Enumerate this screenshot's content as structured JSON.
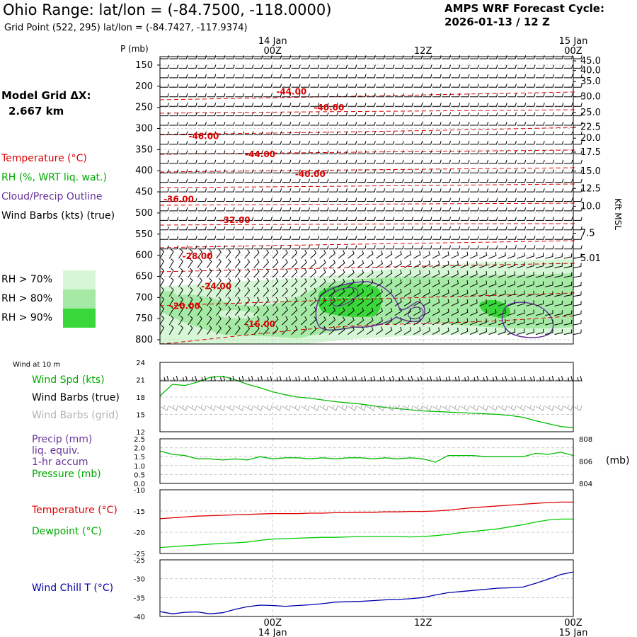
{
  "header": {
    "title": "Ohio Range:  lat/lon = (-84.7500, -118.0000)",
    "grid_point": "Grid Point (522, 295) lat/lon = (-84.7427, -117.9374)",
    "cycle_line1": "AMPS WRF Forecast Cycle:",
    "cycle_line2": "2026-01-13 / 12  Z"
  },
  "grid": {
    "dx_label": "Model Grid ΔX:",
    "dx_value": "2.667 km"
  },
  "legend": {
    "temperature": "Temperature (°C)",
    "rh": "RH (%, WRT liq. wat.)",
    "cloud": "Cloud/Precip Outline",
    "wind_barbs": "Wind Barbs (kts) (true)",
    "rh70": "RH > 70%",
    "rh80": "RH > 80%",
    "rh90": "RH > 90%",
    "rh70_color": "#d6f7d6",
    "rh80_color": "#a4eaa4",
    "rh90_color": "#39d739"
  },
  "axes": {
    "pressure_label": "P (mb)",
    "kft_label": "Kft MSL"
  },
  "surface_legend": {
    "wind_10m": "Wind at 10 m",
    "wind_speed": "Wind Spd (kts)",
    "barbs_true": "Wind Barbs (true)",
    "barbs_grid": "Wind Barbs (grid)",
    "precip": "Precip (mm)",
    "liq": "liq. equiv.",
    "accum": "1-hr accum",
    "pressure": "Pressure (mb)",
    "pressure_unit": "(mb)",
    "temperature": "Temperature (°C)",
    "dewpoint": "Dewpoint (°C)",
    "wind_chill": "Wind Chill T (°C)"
  },
  "chart_data": [
    {
      "type": "heatmap",
      "title": "Time-height cross section",
      "time_ticks_top": [
        {
          "hour": 0,
          "label": "00Z",
          "date": "14 Jan"
        },
        {
          "hour": 12,
          "label": "12Z",
          "date": ""
        },
        {
          "hour": 24,
          "label": "00Z",
          "date": "15 Jan"
        }
      ],
      "time_range_hours": [
        -9,
        24
      ],
      "pressure_ticks_mb": [
        150,
        200,
        250,
        300,
        350,
        400,
        450,
        500,
        550,
        600,
        650,
        700,
        750,
        800
      ],
      "height_ticks_kft": [
        {
          "label": "45.0",
          "p": 140
        },
        {
          "label": "40.0",
          "p": 163
        },
        {
          "label": "35.0",
          "p": 189
        },
        {
          "label": "30.0",
          "p": 225
        },
        {
          "label": "25.0",
          "p": 262
        },
        {
          "label": "22.5",
          "p": 297
        },
        {
          "label": "20.0",
          "p": 323
        },
        {
          "label": "17.5",
          "p": 356
        },
        {
          "label": "15.0",
          "p": 401
        },
        {
          "label": "12.5",
          "p": 442
        },
        {
          "label": "10.0",
          "p": 484
        },
        {
          "label": "7.5",
          "p": 548
        },
        {
          "label": "5.01",
          "p": 607
        }
      ],
      "pressure_range_mb": [
        130,
        810
      ],
      "temperature_labels": [
        {
          "t": -44,
          "text": "-44.00",
          "hour": 1.5,
          "p": 220
        },
        {
          "t": -40,
          "text": "-40.00",
          "hour": 4.5,
          "p": 257
        },
        {
          "t": -46,
          "text": "-46.00",
          "hour": -5.5,
          "p": 325
        },
        {
          "t": -44,
          "text": "-44.00",
          "hour": -1.0,
          "p": 368
        },
        {
          "t": -40,
          "text": "-40.00",
          "hour": 3.0,
          "p": 415
        },
        {
          "t": -36,
          "text": "-36.00",
          "hour": -7.5,
          "p": 474
        },
        {
          "t": -32,
          "text": "-32.00",
          "hour": -3.0,
          "p": 524
        },
        {
          "t": -28,
          "text": "-28.00",
          "hour": -6.0,
          "p": 609
        },
        {
          "t": -24,
          "text": "-24.00",
          "hour": -4.5,
          "p": 680
        },
        {
          "t": -20,
          "text": "-20.00",
          "hour": -7.0,
          "p": 727
        },
        {
          "t": -16,
          "text": "-16.00",
          "hour": -1.0,
          "p": 770
        }
      ]
    },
    {
      "type": "line",
      "title": "Wind Spd (kts)",
      "ylim": [
        12,
        24
      ],
      "yticks": [
        12,
        15,
        18,
        21,
        24
      ],
      "x_hours": [
        -9,
        -8,
        -7,
        -6,
        -5,
        -4,
        -3,
        -2,
        -1,
        0,
        1,
        2,
        3,
        4,
        5,
        6,
        7,
        8,
        9,
        10,
        11,
        12,
        13,
        14,
        15,
        16,
        17,
        18,
        19,
        20,
        21,
        22,
        23,
        24
      ],
      "series": [
        {
          "name": "Wind Spd",
          "color": "#00bb00",
          "values": [
            18.2,
            20.2,
            20.0,
            20.6,
            21.4,
            21.6,
            21.0,
            20.2,
            19.6,
            18.9,
            18.4,
            18.0,
            17.8,
            17.5,
            17.2,
            17.0,
            16.8,
            16.5,
            16.2,
            16.0,
            15.8,
            15.6,
            15.5,
            15.4,
            15.3,
            15.2,
            15.1,
            15.0,
            14.8,
            14.5,
            13.9,
            13.4,
            12.9,
            12.7
          ]
        }
      ]
    },
    {
      "type": "line",
      "title": "Precip (mm) / Pressure (mb)",
      "ylim": [
        0.0,
        2.5
      ],
      "yticks": [
        "0.0",
        "0.5",
        "1.0",
        "1.5",
        "2.0",
        "2.5"
      ],
      "y2lim": [
        804,
        808
      ],
      "y2ticks": [
        "804",
        "806",
        "808"
      ],
      "x_hours": [
        -9,
        -8,
        -7,
        -6,
        -5,
        -4,
        -3,
        -2,
        -1,
        0,
        1,
        2,
        3,
        4,
        5,
        6,
        7,
        8,
        9,
        10,
        11,
        12,
        13,
        14,
        15,
        16,
        17,
        18,
        19,
        20,
        21,
        22,
        23,
        24
      ],
      "series": [
        {
          "name": "Pressure",
          "color": "#00bb00",
          "axis": "y2",
          "values": [
            806.9,
            806.6,
            806.5,
            806.2,
            806.2,
            806.1,
            806.2,
            806.1,
            806.4,
            806.2,
            806.3,
            806.3,
            806.2,
            806.3,
            806.2,
            806.3,
            806.3,
            806.2,
            806.3,
            806.2,
            806.3,
            806.2,
            805.9,
            806.5,
            806.5,
            806.5,
            806.4,
            806.4,
            806.4,
            806.4,
            806.7,
            806.6,
            806.8,
            806.5
          ]
        }
      ]
    },
    {
      "type": "line",
      "title": "Temperature / Dewpoint (°C)",
      "ylim": [
        -25,
        -10
      ],
      "yticks": [
        -25,
        -20,
        -15,
        -10
      ],
      "x_hours": [
        -9,
        -8,
        -7,
        -6,
        -5,
        -4,
        -3,
        -2,
        -1,
        0,
        1,
        2,
        3,
        4,
        5,
        6,
        7,
        8,
        9,
        10,
        11,
        12,
        13,
        14,
        15,
        16,
        17,
        18,
        19,
        20,
        21,
        22,
        23,
        24
      ],
      "series": [
        {
          "name": "Temperature",
          "color": "#dd0000",
          "values": [
            -16.8,
            -16.6,
            -16.4,
            -16.2,
            -16.1,
            -16.0,
            -15.9,
            -15.8,
            -15.7,
            -15.6,
            -15.6,
            -15.6,
            -15.5,
            -15.5,
            -15.4,
            -15.4,
            -15.3,
            -15.3,
            -15.2,
            -15.2,
            -15.1,
            -15.1,
            -15.0,
            -14.8,
            -14.5,
            -14.2,
            -14.0,
            -13.8,
            -13.6,
            -13.4,
            -13.2,
            -13.0,
            -12.9,
            -12.9
          ]
        },
        {
          "name": "Dewpoint",
          "color": "#00cc00",
          "values": [
            -23.6,
            -23.4,
            -23.2,
            -23.0,
            -22.8,
            -22.6,
            -22.5,
            -22.3,
            -21.9,
            -21.6,
            -21.5,
            -21.4,
            -21.3,
            -21.2,
            -21.2,
            -21.1,
            -21.0,
            -21.0,
            -21.0,
            -21.0,
            -21.1,
            -21.0,
            -20.8,
            -20.5,
            -20.1,
            -19.8,
            -19.5,
            -19.2,
            -18.7,
            -18.2,
            -17.6,
            -17.1,
            -16.9,
            -16.9
          ]
        }
      ]
    },
    {
      "type": "line",
      "title": "Wind Chill T (°C)",
      "ylim": [
        -40,
        -25
      ],
      "yticks": [
        -40,
        -35,
        -30,
        -25
      ],
      "x_hours": [
        -9,
        -8,
        -7,
        -6,
        -5,
        -4,
        -3,
        -2,
        -1,
        0,
        1,
        2,
        3,
        4,
        5,
        6,
        7,
        8,
        9,
        10,
        11,
        12,
        13,
        14,
        15,
        16,
        17,
        18,
        19,
        20,
        21,
        22,
        23,
        24
      ],
      "series": [
        {
          "name": "Wind Chill T",
          "color": "#0000aa",
          "values": [
            -38.7,
            -39.3,
            -38.9,
            -38.8,
            -39.3,
            -39.0,
            -38.1,
            -37.4,
            -37.0,
            -37.1,
            -37.3,
            -37.1,
            -36.9,
            -36.6,
            -36.2,
            -36.1,
            -36.0,
            -35.8,
            -35.6,
            -35.5,
            -35.3,
            -35.0,
            -34.3,
            -33.7,
            -33.4,
            -33.1,
            -32.8,
            -32.5,
            -32.4,
            -32.2,
            -31.2,
            -30.1,
            -28.9,
            -28.2
          ]
        }
      ]
    }
  ],
  "bottom_axis": {
    "ticks": [
      {
        "label": "00Z",
        "date": "14 Jan"
      },
      {
        "label": "12Z",
        "date": ""
      },
      {
        "label": "00Z",
        "date": "15 Jan"
      }
    ]
  }
}
